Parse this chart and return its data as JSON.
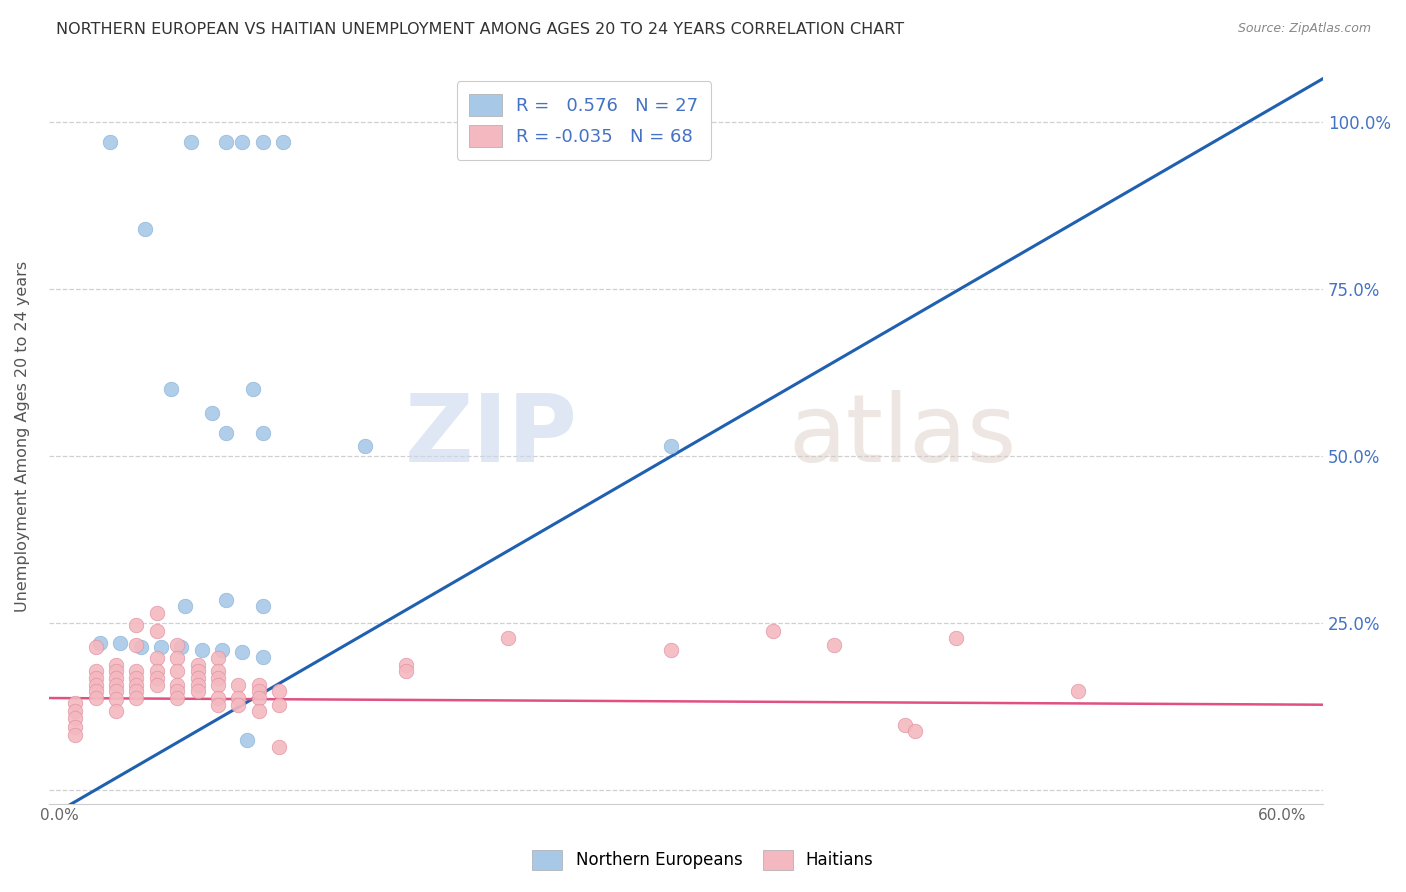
{
  "title": "NORTHERN EUROPEAN VS HAITIAN UNEMPLOYMENT AMONG AGES 20 TO 24 YEARS CORRELATION CHART",
  "source": "Source: ZipAtlas.com",
  "ylabel": "Unemployment Among Ages 20 to 24 years",
  "xlabel": "",
  "xlim": [
    -0.005,
    0.62
  ],
  "ylim": [
    -0.02,
    1.08
  ],
  "xticks": [
    0.0,
    0.1,
    0.2,
    0.3,
    0.4,
    0.5,
    0.6
  ],
  "xticklabels": [
    "0.0%",
    "",
    "",
    "",
    "",
    "",
    "60.0%"
  ],
  "yticks": [
    0.0,
    0.25,
    0.5,
    0.75,
    1.0
  ],
  "yticklabels_left": [
    "",
    "",
    "",
    "",
    ""
  ],
  "yticklabels_right": [
    "",
    "25.0%",
    "50.0%",
    "75.0%",
    "100.0%"
  ],
  "blue_color": "#a8c8e8",
  "pink_color": "#f4b8c0",
  "blue_line_color": "#2060b0",
  "pink_line_color": "#e05080",
  "background_color": "#ffffff",
  "watermark_zip": "ZIP",
  "watermark_atlas": "atlas",
  "legend_blue_label": "R =   0.576   N = 27",
  "legend_pink_label": "R = -0.035   N = 68",
  "blue_scatter": [
    [
      0.025,
      0.97
    ],
    [
      0.065,
      0.97
    ],
    [
      0.082,
      0.97
    ],
    [
      0.09,
      0.97
    ],
    [
      0.1,
      0.97
    ],
    [
      0.11,
      0.97
    ],
    [
      0.042,
      0.84
    ],
    [
      0.055,
      0.6
    ],
    [
      0.075,
      0.565
    ],
    [
      0.095,
      0.6
    ],
    [
      0.082,
      0.535
    ],
    [
      0.1,
      0.535
    ],
    [
      0.15,
      0.515
    ],
    [
      0.3,
      0.515
    ],
    [
      0.062,
      0.275
    ],
    [
      0.082,
      0.285
    ],
    [
      0.1,
      0.275
    ],
    [
      0.02,
      0.22
    ],
    [
      0.03,
      0.22
    ],
    [
      0.04,
      0.215
    ],
    [
      0.05,
      0.215
    ],
    [
      0.06,
      0.215
    ],
    [
      0.07,
      0.21
    ],
    [
      0.08,
      0.21
    ],
    [
      0.09,
      0.207
    ],
    [
      0.1,
      0.2
    ],
    [
      0.092,
      0.075
    ]
  ],
  "pink_scatter": [
    [
      0.008,
      0.13
    ],
    [
      0.008,
      0.118
    ],
    [
      0.008,
      0.108
    ],
    [
      0.008,
      0.095
    ],
    [
      0.008,
      0.082
    ],
    [
      0.018,
      0.215
    ],
    [
      0.018,
      0.178
    ],
    [
      0.018,
      0.168
    ],
    [
      0.018,
      0.158
    ],
    [
      0.018,
      0.148
    ],
    [
      0.018,
      0.138
    ],
    [
      0.028,
      0.188
    ],
    [
      0.028,
      0.178
    ],
    [
      0.028,
      0.168
    ],
    [
      0.028,
      0.158
    ],
    [
      0.028,
      0.148
    ],
    [
      0.028,
      0.136
    ],
    [
      0.028,
      0.118
    ],
    [
      0.038,
      0.248
    ],
    [
      0.038,
      0.218
    ],
    [
      0.038,
      0.178
    ],
    [
      0.038,
      0.168
    ],
    [
      0.038,
      0.158
    ],
    [
      0.038,
      0.148
    ],
    [
      0.038,
      0.138
    ],
    [
      0.048,
      0.265
    ],
    [
      0.048,
      0.238
    ],
    [
      0.048,
      0.198
    ],
    [
      0.048,
      0.178
    ],
    [
      0.048,
      0.168
    ],
    [
      0.048,
      0.158
    ],
    [
      0.058,
      0.218
    ],
    [
      0.058,
      0.198
    ],
    [
      0.058,
      0.178
    ],
    [
      0.058,
      0.158
    ],
    [
      0.058,
      0.148
    ],
    [
      0.058,
      0.138
    ],
    [
      0.068,
      0.188
    ],
    [
      0.068,
      0.178
    ],
    [
      0.068,
      0.168
    ],
    [
      0.068,
      0.158
    ],
    [
      0.068,
      0.148
    ],
    [
      0.078,
      0.198
    ],
    [
      0.078,
      0.178
    ],
    [
      0.078,
      0.168
    ],
    [
      0.078,
      0.158
    ],
    [
      0.078,
      0.138
    ],
    [
      0.078,
      0.128
    ],
    [
      0.088,
      0.158
    ],
    [
      0.088,
      0.138
    ],
    [
      0.088,
      0.128
    ],
    [
      0.098,
      0.158
    ],
    [
      0.098,
      0.148
    ],
    [
      0.098,
      0.138
    ],
    [
      0.098,
      0.118
    ],
    [
      0.108,
      0.148
    ],
    [
      0.108,
      0.128
    ],
    [
      0.108,
      0.065
    ],
    [
      0.17,
      0.188
    ],
    [
      0.17,
      0.178
    ],
    [
      0.22,
      0.228
    ],
    [
      0.3,
      0.21
    ],
    [
      0.35,
      0.238
    ],
    [
      0.38,
      0.218
    ],
    [
      0.415,
      0.098
    ],
    [
      0.42,
      0.088
    ],
    [
      0.44,
      0.228
    ],
    [
      0.5,
      0.148
    ]
  ],
  "blue_line_x": [
    -0.005,
    0.62
  ],
  "blue_line_y": [
    -0.04,
    1.065
  ],
  "pink_line_x": [
    -0.005,
    0.62
  ],
  "pink_line_y": [
    0.138,
    0.128
  ]
}
